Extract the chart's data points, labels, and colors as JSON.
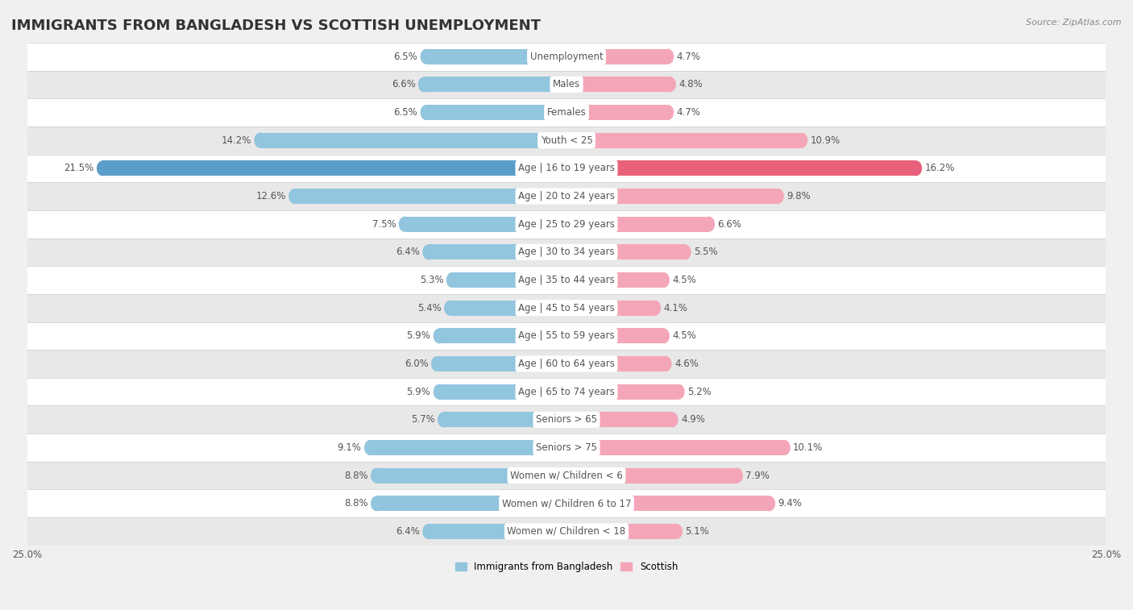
{
  "title": "IMMIGRANTS FROM BANGLADESH VS SCOTTISH UNEMPLOYMENT",
  "source": "Source: ZipAtlas.com",
  "categories": [
    "Unemployment",
    "Males",
    "Females",
    "Youth < 25",
    "Age | 16 to 19 years",
    "Age | 20 to 24 years",
    "Age | 25 to 29 years",
    "Age | 30 to 34 years",
    "Age | 35 to 44 years",
    "Age | 45 to 54 years",
    "Age | 55 to 59 years",
    "Age | 60 to 64 years",
    "Age | 65 to 74 years",
    "Seniors > 65",
    "Seniors > 75",
    "Women w/ Children < 6",
    "Women w/ Children 6 to 17",
    "Women w/ Children < 18"
  ],
  "left_values": [
    6.5,
    6.6,
    6.5,
    14.2,
    21.5,
    12.6,
    7.5,
    6.4,
    5.3,
    5.4,
    5.9,
    6.0,
    5.9,
    5.7,
    9.1,
    8.8,
    8.8,
    6.4
  ],
  "right_values": [
    4.7,
    4.8,
    4.7,
    10.9,
    16.2,
    9.8,
    6.6,
    5.5,
    4.5,
    4.1,
    4.5,
    4.6,
    5.2,
    4.9,
    10.1,
    7.9,
    9.4,
    5.1
  ],
  "left_color": "#92c5de",
  "right_color": "#f4a6b8",
  "highlight_left_color": "#5b9dc9",
  "highlight_right_color": "#e8607a",
  "highlight_indices": [
    4
  ],
  "axis_limit": 25.0,
  "bar_height": 0.55,
  "bg_color": "#f0f0f0",
  "row_colors": [
    "#ffffff",
    "#e8e8e8"
  ],
  "legend_left": "Immigrants from Bangladesh",
  "legend_right": "Scottish",
  "title_fontsize": 13,
  "label_fontsize": 8.5,
  "value_fontsize": 8.5,
  "source_fontsize": 8,
  "label_box_color": "#ffffff",
  "label_text_color": "#555555",
  "value_text_color": "#555555"
}
